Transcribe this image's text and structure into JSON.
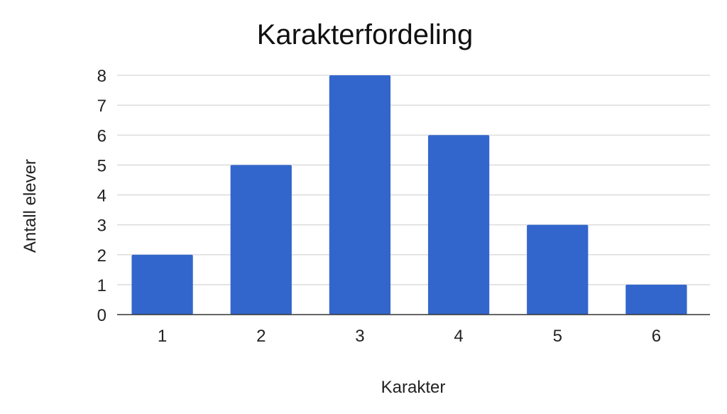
{
  "chart_data": {
    "type": "bar",
    "title": "Karakterfordeling",
    "xlabel": "Karakter",
    "ylabel": "Antall elever",
    "categories": [
      "1",
      "2",
      "3",
      "4",
      "5",
      "6"
    ],
    "values": [
      2,
      5,
      8,
      6,
      3,
      1
    ],
    "ylim": [
      0,
      8
    ],
    "yticks": [
      0,
      1,
      2,
      3,
      4,
      5,
      6,
      7,
      8
    ],
    "grid": true,
    "colors": {
      "bar": "#3366CC"
    }
  }
}
